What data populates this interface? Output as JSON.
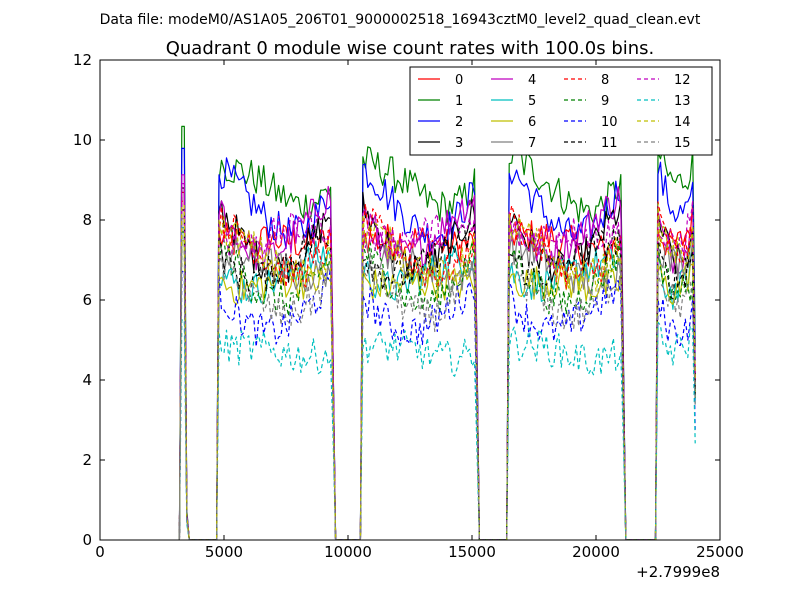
{
  "suptitle": "Data file: modeM0/AS1A05_206T01_9000002518_16943cztM0_level2_quad_clean.evt",
  "chart_data": {
    "type": "line",
    "title": "Quadrant 0 module wise count rates with 100.0s bins.",
    "xlabel": "",
    "ylabel": "",
    "x_offset_label": "+2.7999e8",
    "xlim": [
      0,
      25000
    ],
    "ylim": [
      0,
      12
    ],
    "x_ticks": [
      0,
      5000,
      10000,
      15000,
      20000,
      25000
    ],
    "x_tick_labels": [
      "0",
      "5000",
      "10000",
      "15000",
      "20000",
      "25000"
    ],
    "y_ticks": [
      0,
      2,
      4,
      6,
      8,
      10,
      12
    ],
    "y_tick_labels": [
      "0",
      "2",
      "4",
      "6",
      "8",
      "10",
      "12"
    ],
    "grid": false,
    "legend_position": "top-right",
    "legend_columns": 4,
    "bin_width": 100,
    "segments": [
      [
        3300,
        3500
      ],
      [
        4800,
        9400
      ],
      [
        10600,
        15200
      ],
      [
        16500,
        21100
      ],
      [
        22500,
        24000
      ]
    ],
    "series": [
      {
        "name": "0",
        "color": "#ff0000",
        "style": "solid",
        "level": 7.9
      },
      {
        "name": "1",
        "color": "#008000",
        "style": "solid",
        "level": 9.4
      },
      {
        "name": "2",
        "color": "#0000ff",
        "style": "solid",
        "level": 8.9
      },
      {
        "name": "3",
        "color": "#000000",
        "style": "solid",
        "level": 8.0
      },
      {
        "name": "4",
        "color": "#bf00bf",
        "style": "solid",
        "level": 8.3
      },
      {
        "name": "5",
        "color": "#00bfbf",
        "style": "solid",
        "level": 7.1
      },
      {
        "name": "6",
        "color": "#bfbf00",
        "style": "solid",
        "level": 6.8
      },
      {
        "name": "7",
        "color": "#808080",
        "style": "solid",
        "level": 7.3
      },
      {
        "name": "8",
        "color": "#ff0000",
        "style": "dashed",
        "level": 7.7
      },
      {
        "name": "9",
        "color": "#008000",
        "style": "dashed",
        "level": 7.0
      },
      {
        "name": "10",
        "color": "#0000ff",
        "style": "dashed",
        "level": 6.1
      },
      {
        "name": "11",
        "color": "#000000",
        "style": "dashed",
        "level": 7.5
      },
      {
        "name": "12",
        "color": "#bf00bf",
        "style": "dashed",
        "level": 8.1
      },
      {
        "name": "13",
        "color": "#00bfbf",
        "style": "dashed",
        "level": 5.0
      },
      {
        "name": "14",
        "color": "#bfbf00",
        "style": "dashed",
        "level": 7.6
      },
      {
        "name": "15",
        "color": "#808080",
        "style": "dashed",
        "level": 6.6
      }
    ]
  }
}
